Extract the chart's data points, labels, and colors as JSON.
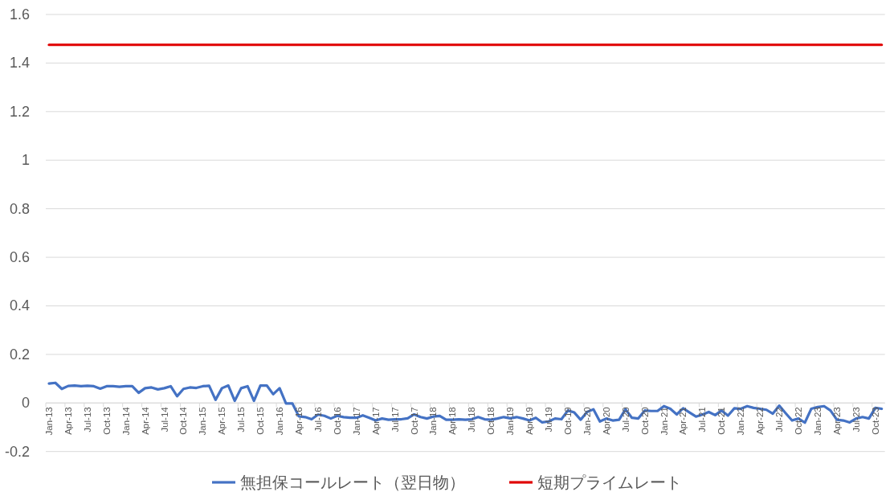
{
  "chart_data": {
    "type": "line",
    "categories": [
      "Jan-13",
      null,
      null,
      "Apr-13",
      null,
      null,
      "Jul-13",
      null,
      null,
      "Oct-13",
      null,
      null,
      "Jan-14",
      null,
      null,
      "Apr-14",
      null,
      null,
      "Jul-14",
      null,
      null,
      "Oct-14",
      null,
      null,
      "Jan-15",
      null,
      null,
      "Apr-15",
      null,
      null,
      "Jul-15",
      null,
      null,
      "Oct-15",
      null,
      null,
      "Jan-16",
      null,
      null,
      "Apr-16",
      null,
      null,
      "Jul-16",
      null,
      null,
      "Oct-16",
      null,
      null,
      "Jan-17",
      null,
      null,
      "Apr-17",
      null,
      null,
      "Jul-17",
      null,
      null,
      "Oct-17",
      null,
      null,
      "Jan-18",
      null,
      null,
      "Apr-18",
      null,
      null,
      "Jul-18",
      null,
      null,
      "Oct-18",
      null,
      null,
      "Jan-19",
      null,
      null,
      "Apr-19",
      null,
      null,
      "Jul-19",
      null,
      null,
      "Oct-19",
      null,
      null,
      "Jan-20",
      null,
      null,
      "Apr-20",
      null,
      null,
      "Jul-20",
      null,
      null,
      "Oct-20",
      null,
      null,
      "Jan-21",
      null,
      null,
      "Apr-21",
      null,
      null,
      "Jul-21",
      null,
      null,
      "Oct-21",
      null,
      null,
      "Jan-22",
      null,
      null,
      "Apr-22",
      null,
      null,
      "Jul-22",
      null,
      null,
      "Oct-22",
      null,
      null,
      "Jan-23",
      null,
      null,
      "Apr-23",
      null,
      null,
      "Jul-23",
      null,
      null,
      "Oct-23",
      null
    ],
    "series": [
      {
        "name": "無担保コールレート（翌日物）",
        "color": "#4472c4",
        "values": [
          0.08,
          0.083,
          0.058,
          0.07,
          0.072,
          0.069,
          0.071,
          0.069,
          0.059,
          0.069,
          0.069,
          0.067,
          0.069,
          0.069,
          0.042,
          0.061,
          0.064,
          0.056,
          0.061,
          0.069,
          0.028,
          0.058,
          0.064,
          0.062,
          0.069,
          0.071,
          0.013,
          0.061,
          0.072,
          0.009,
          0.061,
          0.069,
          0.009,
          0.072,
          0.072,
          0.036,
          0.061,
          -0.002,
          -0.002,
          -0.055,
          -0.058,
          -0.067,
          -0.048,
          -0.053,
          -0.064,
          -0.053,
          -0.058,
          -0.061,
          -0.061,
          -0.051,
          -0.061,
          -0.072,
          -0.064,
          -0.069,
          -0.067,
          -0.067,
          -0.063,
          -0.047,
          -0.058,
          -0.064,
          -0.056,
          -0.053,
          -0.069,
          -0.069,
          -0.067,
          -0.069,
          -0.067,
          -0.058,
          -0.067,
          -0.069,
          -0.064,
          -0.058,
          -0.063,
          -0.058,
          -0.064,
          -0.072,
          -0.061,
          -0.08,
          -0.076,
          -0.064,
          -0.067,
          -0.031,
          -0.039,
          -0.069,
          -0.037,
          -0.026,
          -0.076,
          -0.064,
          -0.072,
          -0.069,
          -0.026,
          -0.061,
          -0.064,
          -0.031,
          -0.033,
          -0.033,
          -0.013,
          -0.024,
          -0.047,
          -0.022,
          -0.039,
          -0.056,
          -0.048,
          -0.037,
          -0.05,
          -0.031,
          -0.052,
          -0.022,
          -0.024,
          -0.013,
          -0.02,
          -0.024,
          -0.028,
          -0.044,
          -0.011,
          -0.042,
          -0.072,
          -0.064,
          -0.081,
          -0.024,
          -0.017,
          -0.013,
          -0.031,
          -0.069,
          -0.072,
          -0.08,
          -0.064,
          -0.058,
          -0.064,
          -0.02,
          -0.024
        ]
      },
      {
        "name": "短期プライムレート",
        "color": "#e00000",
        "values": [
          1.475,
          1.475,
          1.475,
          1.475,
          1.475,
          1.475,
          1.475,
          1.475,
          1.475,
          1.475,
          1.475,
          1.475,
          1.475,
          1.475,
          1.475,
          1.475,
          1.475,
          1.475,
          1.475,
          1.475,
          1.475,
          1.475,
          1.475,
          1.475,
          1.475,
          1.475,
          1.475,
          1.475,
          1.475,
          1.475,
          1.475,
          1.475,
          1.475,
          1.475,
          1.475,
          1.475,
          1.475,
          1.475,
          1.475,
          1.475,
          1.475,
          1.475,
          1.475,
          1.475,
          1.475,
          1.475,
          1.475,
          1.475,
          1.475,
          1.475,
          1.475,
          1.475,
          1.475,
          1.475,
          1.475,
          1.475,
          1.475,
          1.475,
          1.475,
          1.475,
          1.475,
          1.475,
          1.475,
          1.475,
          1.475,
          1.475,
          1.475,
          1.475,
          1.475,
          1.475,
          1.475,
          1.475,
          1.475,
          1.475,
          1.475,
          1.475,
          1.475,
          1.475,
          1.475,
          1.475,
          1.475,
          1.475,
          1.475,
          1.475,
          1.475,
          1.475,
          1.475,
          1.475,
          1.475,
          1.475,
          1.475,
          1.475,
          1.475,
          1.475,
          1.475,
          1.475,
          1.475,
          1.475,
          1.475,
          1.475,
          1.475,
          1.475,
          1.475,
          1.475,
          1.475,
          1.475,
          1.475,
          1.475,
          1.475,
          1.475,
          1.475,
          1.475,
          1.475,
          1.475,
          1.475,
          1.475,
          1.475,
          1.475,
          1.475,
          1.475,
          1.475,
          1.475,
          1.475,
          1.475,
          1.475,
          1.475,
          1.475,
          1.475,
          1.475,
          1.475,
          1.475
        ]
      }
    ],
    "ylim": [
      -0.2,
      1.6
    ],
    "yticks": [
      -0.2,
      0,
      0.2,
      0.4,
      0.6,
      0.8,
      1,
      1.2,
      1.4,
      1.6
    ],
    "grid": "y",
    "legend": "bottom",
    "line_style": "solid"
  }
}
